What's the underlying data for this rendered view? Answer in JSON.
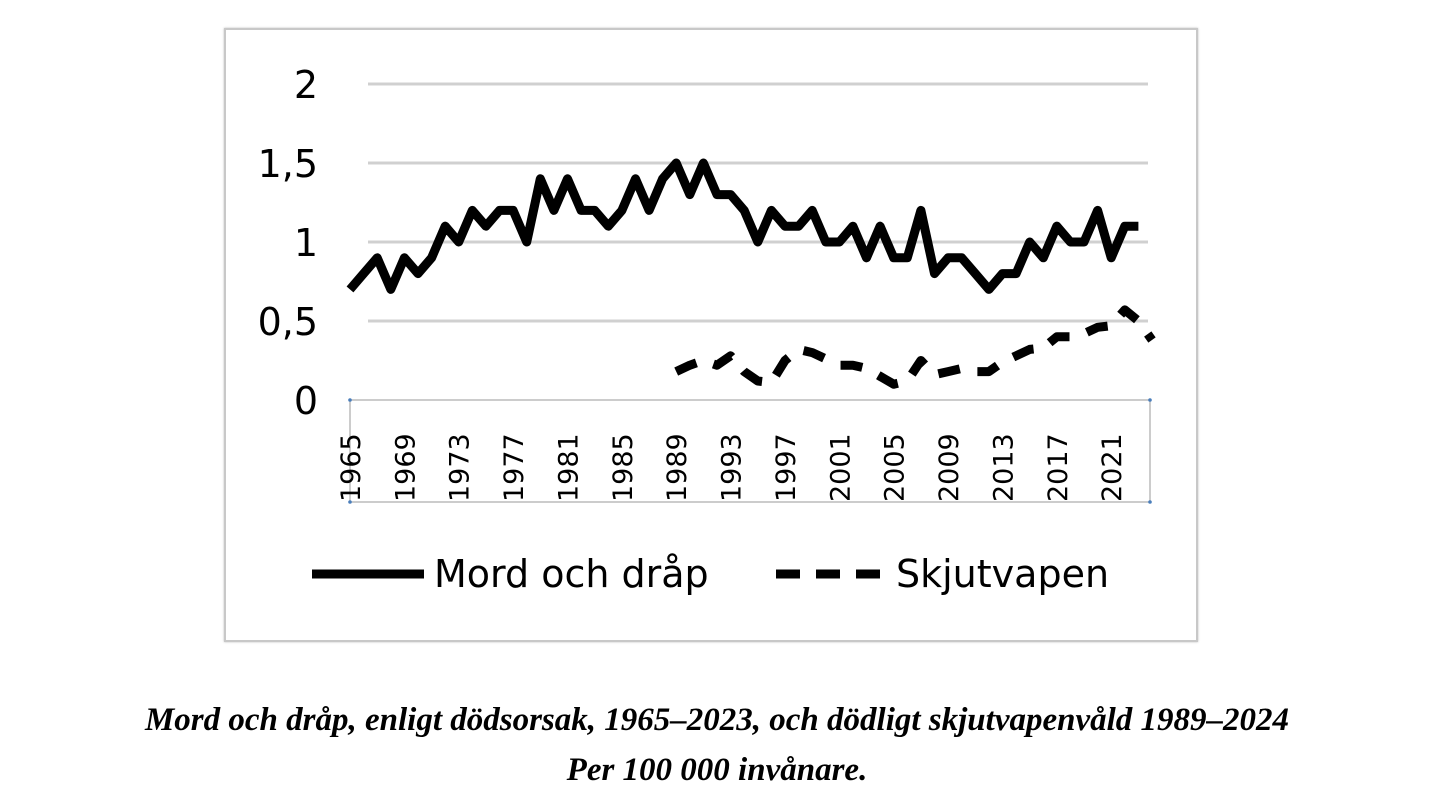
{
  "chart_data": {
    "type": "line",
    "ylim": [
      0,
      2
    ],
    "y_ticks": [
      "0",
      "0,5",
      "1",
      "1,5",
      "2"
    ],
    "y_tick_values": [
      0,
      0.5,
      1,
      1.5,
      2
    ],
    "x_tick_labels": [
      "1965",
      "1969",
      "1973",
      "1977",
      "1981",
      "1985",
      "1989",
      "1993",
      "1997",
      "2001",
      "2005",
      "2009",
      "2013",
      "2017",
      "2021"
    ],
    "x_range": [
      1965,
      2024
    ],
    "grid": true,
    "legend_position": "bottom",
    "series": [
      {
        "name": "Mord och dråp",
        "style": "solid",
        "x": [
          1965,
          1966,
          1967,
          1968,
          1969,
          1970,
          1971,
          1972,
          1973,
          1974,
          1975,
          1976,
          1977,
          1978,
          1979,
          1980,
          1981,
          1982,
          1983,
          1984,
          1985,
          1986,
          1987,
          1988,
          1989,
          1990,
          1991,
          1992,
          1993,
          1994,
          1995,
          1996,
          1997,
          1998,
          1999,
          2000,
          2001,
          2002,
          2003,
          2004,
          2005,
          2006,
          2007,
          2008,
          2009,
          2010,
          2011,
          2012,
          2013,
          2014,
          2015,
          2016,
          2017,
          2018,
          2019,
          2020,
          2021,
          2022,
          2023
        ],
        "values": [
          0.7,
          0.8,
          0.9,
          0.7,
          0.9,
          0.8,
          0.9,
          1.1,
          1.0,
          1.2,
          1.1,
          1.2,
          1.2,
          1.0,
          1.4,
          1.2,
          1.4,
          1.2,
          1.2,
          1.1,
          1.2,
          1.4,
          1.2,
          1.4,
          1.5,
          1.3,
          1.5,
          1.3,
          1.3,
          1.2,
          1.0,
          1.2,
          1.1,
          1.1,
          1.2,
          1.0,
          1.0,
          1.1,
          0.9,
          1.1,
          0.9,
          0.9,
          1.2,
          0.8,
          0.9,
          0.9,
          0.8,
          0.7,
          0.8,
          0.8,
          1.0,
          0.9,
          1.1,
          1.0,
          1.0,
          1.2,
          0.9,
          1.1,
          1.1
        ]
      },
      {
        "name": "Skjutvapen",
        "style": "dashed",
        "x": [
          1989,
          1990,
          1991,
          1992,
          1993,
          1994,
          1995,
          1996,
          1997,
          1998,
          1999,
          2000,
          2001,
          2002,
          2003,
          2004,
          2005,
          2006,
          2007,
          2008,
          2009,
          2010,
          2011,
          2012,
          2013,
          2014,
          2015,
          2016,
          2017,
          2018,
          2019,
          2020,
          2021,
          2022,
          2023,
          2024
        ],
        "values": [
          0.18,
          0.22,
          0.25,
          0.22,
          0.28,
          0.18,
          0.12,
          0.11,
          0.25,
          0.32,
          0.3,
          0.26,
          0.22,
          0.22,
          0.2,
          0.15,
          0.1,
          0.12,
          0.25,
          0.16,
          0.18,
          0.2,
          0.18,
          0.18,
          0.24,
          0.28,
          0.32,
          0.33,
          0.4,
          0.4,
          0.42,
          0.46,
          0.47,
          0.57,
          0.5,
          0.38
        ]
      }
    ]
  },
  "caption": {
    "line1": "Mord och dråp, enligt dödsorsak, 1965–2023, och dödligt skjutvapenvåld 1989–2024",
    "line2": "Per 100 000 invånare."
  }
}
